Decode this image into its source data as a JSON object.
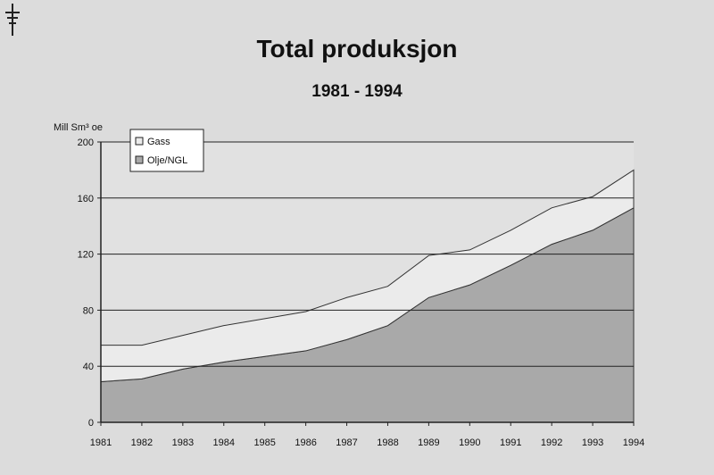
{
  "chart_data": {
    "type": "area",
    "title": "Total produksjon",
    "subtitle": "1981 - 1994",
    "ylabel": "Mill Sm³ oe",
    "xlabel": "",
    "ylim": [
      0,
      200
    ],
    "yticks": [
      0,
      40,
      80,
      120,
      160,
      200
    ],
    "categories": [
      "1981",
      "1982",
      "1983",
      "1984",
      "1985",
      "1986",
      "1987",
      "1988",
      "1989",
      "1990",
      "1991",
      "1992",
      "1993",
      "1994"
    ],
    "stacked": true,
    "grid": true,
    "legend_position": "top-left",
    "series": [
      {
        "name": "Olje/NGL",
        "color": "#a9a9a9",
        "values": [
          29,
          31,
          38,
          43,
          47,
          51,
          59,
          69,
          89,
          98,
          112,
          127,
          137,
          153
        ]
      },
      {
        "name": "Gass",
        "color": "#ebebeb",
        "values": [
          26,
          24,
          24,
          26,
          27,
          28,
          30,
          28,
          30,
          25,
          25,
          26,
          24,
          27
        ]
      }
    ]
  },
  "colors": {
    "background": "#dcdcdc",
    "plot_background": "#e1e1e1",
    "axis": "#222222"
  },
  "icons": {
    "logo": "oil-rig-icon"
  }
}
